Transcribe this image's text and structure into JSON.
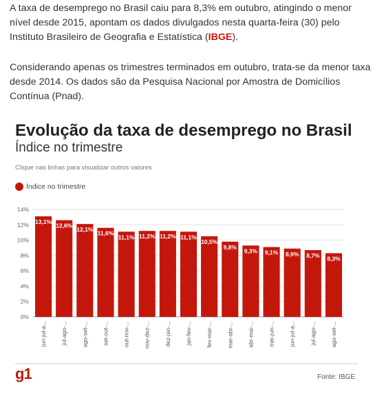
{
  "article": {
    "paragraph1_before": "A taxa de desemprego no Brasil caiu para 8,3% em outubro, atingindo o menor nível desde 2015, apontam os dados divulgados nesta quarta-feira (30) pelo Instituto Brasileiro de Geografia e Estatística (",
    "paragraph1_link": "IBGE",
    "paragraph1_after": ").",
    "paragraph2": "Considerando apenas os trimestres terminados em outubro, trata-se da menor taxa desde 2014. Os dados são da Pesquisa Nacional por Amostra de Domicílios Contínua (Pnad)."
  },
  "chart_header": {
    "title": "Evolução da taxa de desemprego no Brasil",
    "subtitle": "Índice no trimestre",
    "hint": "Clique nas linhas para visualizar outros valores"
  },
  "colors": {
    "bar": "#c4170c",
    "brand": "#c4170c"
  },
  "footer": {
    "logo": "g1",
    "source": "Fonte: IBGE"
  },
  "chart_data": {
    "type": "bar",
    "title": "Evolução da taxa de desemprego no Brasil",
    "subtitle": "Índice no trimestre",
    "categories": [
      "jun-jul-a...",
      "jul-ago-...",
      "ago-set-...",
      "set-out-...",
      "out-nov-...",
      "nov-dez-...",
      "dez-jan-...",
      "jan-fev-...",
      "fev-mar-...",
      "mar-abr-...",
      "abr-mai-...",
      "mai-jun-...",
      "jun-jul-a...",
      "jul-ago-...",
      "ago-set-..."
    ],
    "series": [
      {
        "name": "Índice no trimestre",
        "values": [
          13.1,
          12.6,
          12.1,
          11.6,
          11.1,
          11.2,
          11.2,
          11.1,
          10.5,
          9.8,
          9.3,
          9.1,
          8.9,
          8.7,
          8.3
        ],
        "labels": [
          "13,1%",
          "12,6%",
          "12,1%",
          "11,6%",
          "11,1%",
          "11,2%",
          "11,2%",
          "11,1%",
          "10,5%",
          "9,8%",
          "9,3%",
          "9,1%",
          "8,9%",
          "8,7%",
          "8,3%"
        ]
      }
    ],
    "yticks": [
      "0%",
      "2%",
      "4%",
      "6%",
      "8%",
      "10%",
      "12%",
      "14%"
    ],
    "ylim": [
      0,
      14
    ],
    "legend": "top-left",
    "grid": true
  }
}
